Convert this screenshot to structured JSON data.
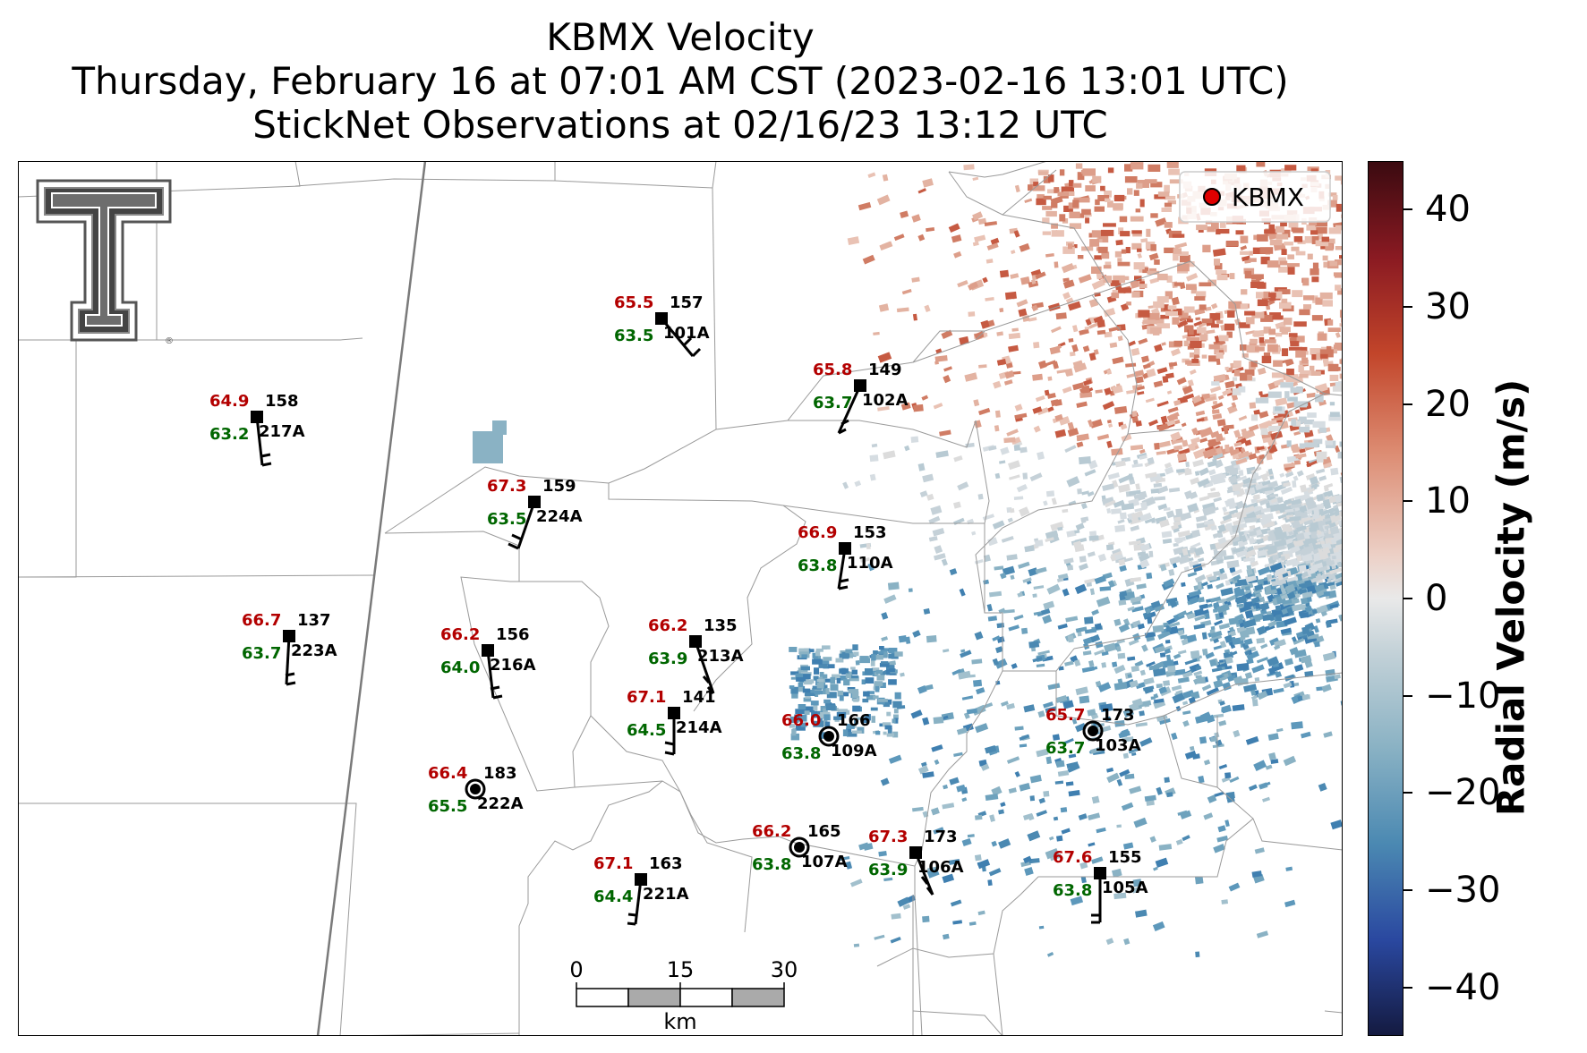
{
  "title": {
    "line1": "KBMX Velocity",
    "line2": "Thursday, February 16 at 07:01 AM CST (2023-02-16 13:01 UTC)",
    "line3": "StickNet Observations at 02/16/23 13:12 UTC"
  },
  "legend": {
    "label": "KBMX",
    "marker_color": "#e00000"
  },
  "colorbar": {
    "label": "Radial Velocity (m/s)",
    "ticks": [
      "40",
      "30",
      "20",
      "10",
      "0",
      "−10",
      "−20",
      "−30",
      "−40"
    ],
    "range": [
      -45,
      45
    ]
  },
  "scalebar": {
    "labels": [
      "0",
      "15",
      "30"
    ],
    "unit": "km"
  },
  "stations": [
    {
      "id": "101A",
      "temp": "65.5",
      "dew": "63.5",
      "dir": "157",
      "type": "square",
      "wind": "barb"
    },
    {
      "id": "102A",
      "temp": "65.8",
      "dew": "63.7",
      "dir": "149",
      "type": "square",
      "wind": "barb"
    },
    {
      "id": "217A",
      "temp": "64.9",
      "dew": "63.2",
      "dir": "158",
      "type": "square",
      "wind": "barb"
    },
    {
      "id": "224A",
      "temp": "67.3",
      "dew": "63.5",
      "dir": "159",
      "type": "square",
      "wind": "barb"
    },
    {
      "id": "110A",
      "temp": "66.9",
      "dew": "63.8",
      "dir": "153",
      "type": "square",
      "wind": "barb"
    },
    {
      "id": "223A",
      "temp": "66.7",
      "dew": "63.7",
      "dir": "137",
      "type": "square",
      "wind": "barb"
    },
    {
      "id": "216A",
      "temp": "66.2",
      "dew": "64.0",
      "dir": "156",
      "type": "square",
      "wind": "barb"
    },
    {
      "id": "213A",
      "temp": "66.2",
      "dew": "63.9",
      "dir": "135",
      "type": "square",
      "wind": "barb"
    },
    {
      "id": "214A",
      "temp": "67.1",
      "dew": "64.5",
      "dir": "141",
      "type": "square",
      "wind": "barb"
    },
    {
      "id": "109A",
      "temp": "66.0",
      "dew": "63.8",
      "dir": "166",
      "type": "calm",
      "wind": "calm"
    },
    {
      "id": "103A",
      "temp": "65.7",
      "dew": "63.7",
      "dir": "173",
      "type": "calm",
      "wind": "calm"
    },
    {
      "id": "222A",
      "temp": "66.4",
      "dew": "65.5",
      "dir": "183",
      "type": "calm",
      "wind": "calm"
    },
    {
      "id": "107A",
      "temp": "66.2",
      "dew": "63.8",
      "dir": "165",
      "type": "calm",
      "wind": "calm"
    },
    {
      "id": "106A",
      "temp": "67.3",
      "dew": "63.9",
      "dir": "173",
      "type": "square",
      "wind": "barb"
    },
    {
      "id": "221A",
      "temp": "67.1",
      "dew": "64.4",
      "dir": "163",
      "type": "square",
      "wind": "barb"
    },
    {
      "id": "105A",
      "temp": "67.6",
      "dew": "63.8",
      "dir": "155",
      "type": "square",
      "wind": "barb"
    }
  ],
  "colors": {
    "temp": "#b30000",
    "dew": "#006600"
  }
}
